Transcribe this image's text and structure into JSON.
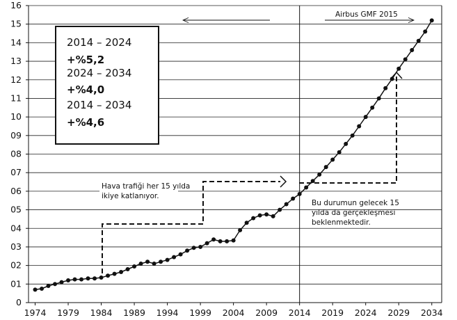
{
  "chart_data": {
    "type": "line",
    "x": [
      1974,
      1975,
      1976,
      1977,
      1978,
      1979,
      1980,
      1981,
      1982,
      1983,
      1984,
      1985,
      1986,
      1987,
      1988,
      1989,
      1990,
      1991,
      1992,
      1993,
      1994,
      1995,
      1996,
      1997,
      1998,
      1999,
      2000,
      2001,
      2002,
      2003,
      2004,
      2005,
      2006,
      2007,
      2008,
      2009,
      2010,
      2011,
      2012,
      2013,
      2014,
      2015,
      2016,
      2017,
      2018,
      2019,
      2020,
      2021,
      2022,
      2023,
      2024,
      2025,
      2026,
      2027,
      2028,
      2029,
      2030,
      2031,
      2032,
      2033,
      2034
    ],
    "y": [
      0.7,
      0.75,
      0.9,
      1.0,
      1.1,
      1.2,
      1.25,
      1.25,
      1.3,
      1.3,
      1.35,
      1.45,
      1.55,
      1.65,
      1.8,
      1.95,
      2.1,
      2.2,
      2.1,
      2.2,
      2.3,
      2.45,
      2.6,
      2.8,
      2.95,
      3.0,
      3.2,
      3.4,
      3.3,
      3.3,
      3.35,
      3.9,
      4.3,
      4.55,
      4.7,
      4.75,
      4.65,
      5.0,
      5.3,
      5.6,
      5.85,
      6.2,
      6.55,
      6.9,
      7.3,
      7.7,
      8.1,
      8.55,
      9.0,
      9.5,
      10.0,
      10.5,
      11.0,
      11.55,
      12.05,
      12.6,
      13.1,
      13.6,
      14.1,
      14.6,
      15.2
    ],
    "x_ticks": [
      "1974",
      "1979",
      "1984",
      "1989",
      "1994",
      "1999",
      "2004",
      "2009",
      "2014",
      "2019",
      "2024",
      "2029",
      "2034"
    ],
    "y_ticks": [
      "0",
      "01",
      "02",
      "03",
      "04",
      "05",
      "06",
      "07",
      "08",
      "09",
      "10",
      "11",
      "12",
      "13",
      "14",
      "15",
      "16"
    ],
    "xlim": [
      1973,
      2035.5
    ],
    "ylim": [
      0,
      16
    ],
    "grid": "horizontal",
    "marker": "filled-circle",
    "line_color": "#111111",
    "divider_x": 2014
  },
  "annotations": {
    "forecast_label": "Airbus GMF 2015",
    "doubling_text_1": "Hava trafiği her 15 yılda",
    "doubling_text_2": "ikiye katlanıyor.",
    "future_text_1": "Bu durumun gelecek 15",
    "future_text_2": "yılda da gerçekleşmesi",
    "future_text_3": "beklenmektedir."
  },
  "growth_box": {
    "period_1": "2014 – 2024",
    "rate_1": "+%5,2",
    "period_2": "2024 – 2034",
    "rate_2": "+%4,0",
    "period_3": "2014 – 2034",
    "rate_3": "+%4,6"
  }
}
